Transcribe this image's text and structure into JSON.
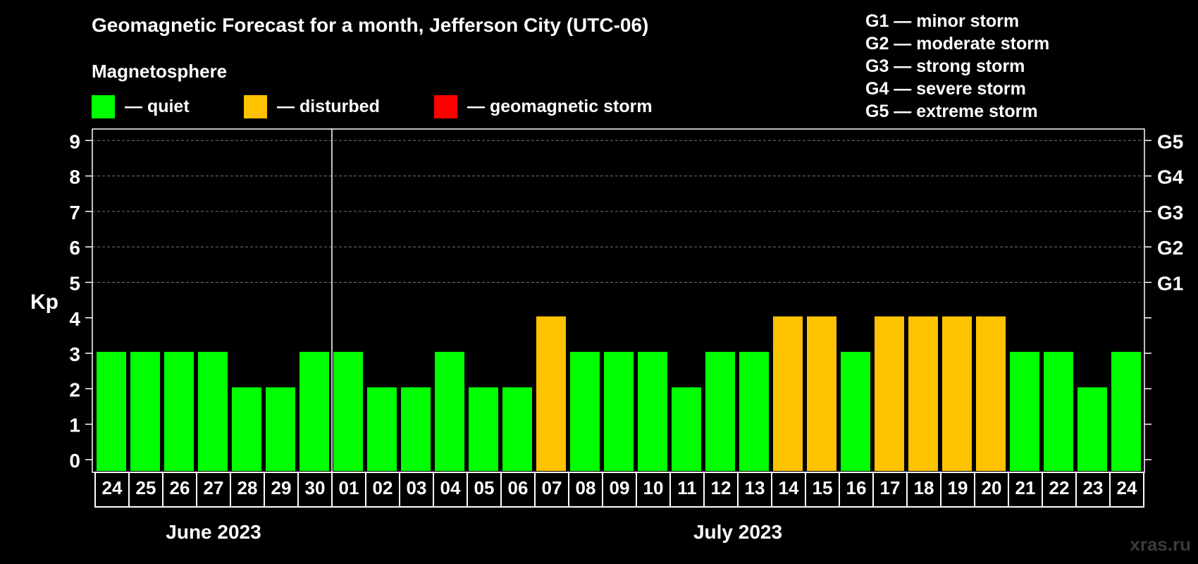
{
  "title": "Geomagnetic Forecast for a month, Jefferson City (UTC-06)",
  "subtitle": "Magnetosphere",
  "legend": [
    {
      "label": "— quiet",
      "color": "#00ff00"
    },
    {
      "label": "— disturbed",
      "color": "#ffc200"
    },
    {
      "label": "— geomagnetic storm",
      "color": "#ff0000"
    }
  ],
  "storm_levels": [
    "G1 — minor storm",
    "G2 — moderate storm",
    "G3 — strong storm",
    "G4 — severe storm",
    "G5 — extreme storm"
  ],
  "watermark": "xras.ru",
  "chart_data": {
    "type": "bar",
    "title": "Geomagnetic Forecast for a month, Jefferson City (UTC-06)",
    "ylabel": "Kp",
    "ylim": [
      0,
      9
    ],
    "yticks": [
      0,
      1,
      2,
      3,
      4,
      5,
      6,
      7,
      8,
      9
    ],
    "right_axis_labels": [
      {
        "kp": 5,
        "label": "G1"
      },
      {
        "kp": 6,
        "label": "G2"
      },
      {
        "kp": 7,
        "label": "G3"
      },
      {
        "kp": 8,
        "label": "G4"
      },
      {
        "kp": 9,
        "label": "G5"
      }
    ],
    "grid": true,
    "categories": [
      "24",
      "25",
      "26",
      "27",
      "28",
      "29",
      "30",
      "01",
      "02",
      "03",
      "04",
      "05",
      "06",
      "07",
      "08",
      "09",
      "10",
      "11",
      "12",
      "13",
      "14",
      "15",
      "16",
      "17",
      "18",
      "19",
      "20",
      "21",
      "22",
      "23",
      "24"
    ],
    "values": [
      3,
      3,
      3,
      3,
      2,
      2,
      3,
      3,
      2,
      2,
      3,
      2,
      2,
      4,
      3,
      3,
      3,
      2,
      3,
      3,
      4,
      4,
      3,
      4,
      4,
      4,
      4,
      3,
      3,
      2,
      3
    ],
    "colors": {
      "quiet": "#00ff00",
      "disturbed": "#ffc200",
      "storm": "#ff0000"
    },
    "months": [
      {
        "label": "June 2023",
        "start": 0,
        "end": 6
      },
      {
        "label": "July 2023",
        "start": 7,
        "end": 30
      }
    ]
  }
}
